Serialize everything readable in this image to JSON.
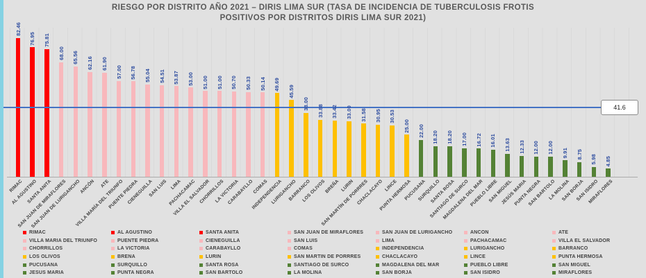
{
  "window": {
    "background": "#e1e1e1",
    "accent_strip_color": "#85d2e3"
  },
  "title": {
    "line1": "RIESGO POR DISTRITO AÑO 2021 – DIRIS LIMA SUR (TASA DE INCIDENCIA DE TUBERCULOSIS  FROTIS",
    "line2": "POSITIVOS  POR DISTRITOS  DIRIS LIMA SUR 2021)"
  },
  "chart_data": {
    "type": "bar",
    "title": "RIESGO POR DISTRITO AÑO 2021 – DIRIS LIMA SUR (TASA DE INCIDENCIA DE TUBERCULOSIS FROTIS POSITIVOS POR DISTRITOS DIRIS LIMA SUR 2021)",
    "xlabel": "",
    "ylabel": "",
    "ylim": [
      0,
      90
    ],
    "grid": false,
    "legend_position": "bottom",
    "reference_line": {
      "value": 41.6,
      "label": "41.6",
      "color": "#4472c4"
    },
    "group_colors": {
      "red": "#fe0000",
      "pink": "#f8b8bc",
      "yellow": "#ffc000",
      "green": "#548235"
    },
    "categories": [
      "RIMAC",
      "AL AGUSTINO",
      "SANTA ANITA",
      "SAN JUAN DE MIRAFLORES",
      "SAN JUAN DE LURIGANCHO",
      "ANCÓN",
      "ATE",
      "VILLA MARÍA DEL TRIUNFO",
      "PUENTE PIEDRA",
      "CIENEGUILLA",
      "SAN LUIS",
      "LIMA",
      "PACHACAMAC",
      "VILLA EL SALVADOR",
      "CHORRILLOS",
      "LA VICTORIA",
      "CARABAYLLO",
      "COMAS",
      "INDEPENDENCIA",
      "LURIGANCHO",
      "BARRANCO",
      "LOS OLIVOS",
      "BREÑA",
      "LURIN",
      "SAN MARTÍN DE PORRRES",
      "CHACLACAYO",
      "LINCE",
      "PUNTA HERMOSA",
      "PUCUSANA",
      "SURQUILLO",
      "SANTA ROSA",
      "SANTIAGO DE SURCO",
      "MAGDALENA DEL MAR",
      "PUEBLO LIBRE",
      "SAN MIGUEL",
      "JESÚS MARIA",
      "PUNTA NEGRA",
      "SAN BARTOLO",
      "LA MOLINA",
      "SAN BORJA",
      "SAN ISIDRO",
      "MIRAFLORES"
    ],
    "values": [
      82.46,
      76.95,
      75.81,
      68.0,
      65.56,
      62.16,
      61.9,
      57.0,
      56.78,
      55.04,
      54.51,
      53.87,
      53.0,
      51.0,
      51.0,
      50.7,
      50.33,
      50.14,
      49.69,
      45.59,
      38.0,
      33.88,
      33.42,
      33.0,
      31.58,
      30.95,
      30.53,
      25.0,
      22.0,
      18.2,
      18.2,
      17.0,
      16.72,
      16.01,
      13.63,
      12.33,
      12.0,
      12.0,
      9.91,
      8.75,
      5.98,
      4.85
    ],
    "value_labels": [
      "82.46",
      "76.95",
      "75.81",
      "68.00",
      "65.56",
      "62.16",
      "61.90",
      "57.00",
      "56.78",
      "55.04",
      "54.51",
      "53.87",
      "53.00",
      "51.00",
      "51.00",
      "50.70",
      "50.33",
      "50.14",
      "49.69",
      "45.59",
      "38.00",
      "33.88",
      "33.42",
      "33.00",
      "31.58",
      "30.95",
      "30.53",
      "25.00",
      "22.00",
      "18.20",
      "18.20",
      "17.00",
      "16.72",
      "16.01",
      "13.63",
      "12.33",
      "12.00",
      "12.00",
      "9.91",
      "8.75",
      "5.98",
      "4.85"
    ],
    "groups": [
      "red",
      "red",
      "red",
      "pink",
      "pink",
      "pink",
      "pink",
      "pink",
      "pink",
      "pink",
      "pink",
      "pink",
      "pink",
      "pink",
      "pink",
      "pink",
      "pink",
      "pink",
      "yellow",
      "yellow",
      "yellow",
      "yellow",
      "yellow",
      "yellow",
      "yellow",
      "yellow",
      "yellow",
      "yellow",
      "green",
      "green",
      "green",
      "green",
      "green",
      "green",
      "green",
      "green",
      "green",
      "green",
      "green",
      "green",
      "green",
      "green"
    ]
  },
  "styles": {
    "title_color": "#595959",
    "value_label_color": "#2b4a9e",
    "axis_label_color": "#3f3f3f",
    "legend_text_color": "#404040",
    "axis_line_color": "#ababab"
  }
}
